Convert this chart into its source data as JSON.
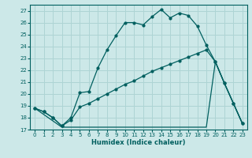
{
  "xlabel": "Humidex (Indice chaleur)",
  "bg_color": "#cce8e8",
  "grid_color": "#aed4d4",
  "line_color": "#005f5f",
  "xlim": [
    -0.5,
    23.5
  ],
  "ylim": [
    17,
    27.5
  ],
  "yticks": [
    17,
    18,
    19,
    20,
    21,
    22,
    23,
    24,
    25,
    26,
    27
  ],
  "xticks": [
    0,
    1,
    2,
    3,
    4,
    5,
    6,
    7,
    8,
    9,
    10,
    11,
    12,
    13,
    14,
    15,
    16,
    17,
    18,
    19,
    20,
    21,
    22,
    23
  ],
  "line1_x": [
    0,
    1,
    2,
    3,
    4,
    5,
    6,
    7,
    8,
    9,
    10,
    11,
    12,
    13,
    14,
    15,
    16,
    17,
    18,
    19,
    20,
    21,
    22,
    23
  ],
  "line1_y": [
    18.8,
    18.5,
    18.0,
    17.3,
    18.0,
    20.1,
    20.2,
    22.2,
    23.7,
    24.9,
    26.0,
    26.0,
    25.8,
    26.5,
    27.1,
    26.4,
    26.8,
    26.6,
    25.7,
    24.1,
    22.7,
    20.9,
    19.2,
    17.5
  ],
  "line2_x": [
    0,
    1,
    2,
    3,
    4,
    5,
    6,
    7,
    8,
    9,
    10,
    11,
    12,
    13,
    14,
    15,
    16,
    17,
    18,
    19,
    20,
    21,
    22,
    23
  ],
  "line2_y": [
    18.8,
    18.5,
    18.0,
    17.3,
    17.8,
    18.9,
    19.2,
    19.6,
    20.0,
    20.4,
    20.8,
    21.1,
    21.5,
    21.9,
    22.2,
    22.5,
    22.8,
    23.1,
    23.4,
    23.7,
    22.7,
    20.9,
    19.2,
    17.5
  ],
  "line3_x": [
    0,
    3,
    9,
    19,
    20,
    21,
    22,
    23
  ],
  "line3_y": [
    18.8,
    17.2,
    17.2,
    17.2,
    22.7,
    20.9,
    19.2,
    17.5
  ]
}
